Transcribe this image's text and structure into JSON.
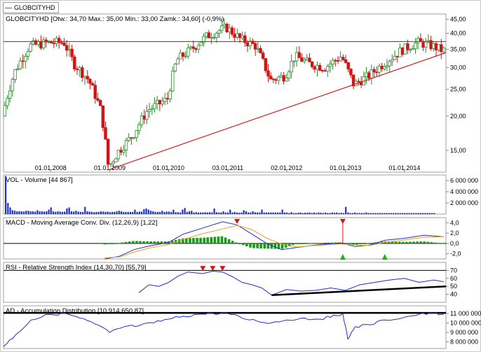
{
  "legend": {
    "symbol": "GLOBCITYHD"
  },
  "chart_data": [
    {
      "type": "candlestick",
      "title": "GLOBCITYHD [Otw.: 34,70  Max.: 35,00  Min.: 33,00  Zamk.: 34,60] (-0,9%)",
      "scale": "log",
      "ylim": [
        12.5,
        47
      ],
      "yticks": [
        45,
        40,
        35,
        30,
        25,
        20,
        15
      ],
      "ytick_labels": [
        "45,00",
        "40,00",
        "35,00",
        "30,00",
        "25,00",
        "20,00",
        "15,00"
      ],
      "x_tick_labels": [
        "01.01.2008",
        "01.01.2009",
        "01.01.2010",
        "03.01.2011",
        "02.01.2012",
        "01.01.2013",
        "01.01.2014"
      ],
      "x_tick_dates": [
        "2008-01-01",
        "2009-01-01",
        "2010-01-01",
        "2011-01-03",
        "2012-01-02",
        "2013-01-01",
        "2014-01-01"
      ],
      "x_range": [
        "2007-03-15",
        "2014-09-15"
      ],
      "resistance_line": 37.3,
      "trend_line": {
        "from": {
          "date": "2009-01-01",
          "value": 12.8
        },
        "to": {
          "date": "2014-09-15",
          "value": 34.0
        }
      },
      "key_prices": [
        {
          "date": "2007-03-15",
          "value": 20
        },
        {
          "date": "2007-06-01",
          "value": 29
        },
        {
          "date": "2007-09-01",
          "value": 36
        },
        {
          "date": "2008-01-01",
          "value": 37
        },
        {
          "date": "2008-04-01",
          "value": 37
        },
        {
          "date": "2008-06-01",
          "value": 31
        },
        {
          "date": "2008-09-01",
          "value": 27
        },
        {
          "date": "2008-11-15",
          "value": 21
        },
        {
          "date": "2009-01-01",
          "value": 13
        },
        {
          "date": "2009-03-01",
          "value": 14.8
        },
        {
          "date": "2009-06-01",
          "value": 17
        },
        {
          "date": "2009-09-01",
          "value": 21
        },
        {
          "date": "2010-01-01",
          "value": 23
        },
        {
          "date": "2010-03-01",
          "value": 32
        },
        {
          "date": "2010-06-01",
          "value": 35
        },
        {
          "date": "2010-09-01",
          "value": 39
        },
        {
          "date": "2011-01-01",
          "value": 42
        },
        {
          "date": "2011-04-01",
          "value": 38
        },
        {
          "date": "2011-07-01",
          "value": 36
        },
        {
          "date": "2011-10-01",
          "value": 27
        },
        {
          "date": "2012-01-01",
          "value": 28
        },
        {
          "date": "2012-03-01",
          "value": 33
        },
        {
          "date": "2012-06-01",
          "value": 31
        },
        {
          "date": "2012-09-01",
          "value": 30
        },
        {
          "date": "2012-12-15",
          "value": 33
        },
        {
          "date": "2013-03-01",
          "value": 26
        },
        {
          "date": "2013-06-01",
          "value": 28
        },
        {
          "date": "2013-09-01",
          "value": 31
        },
        {
          "date": "2014-01-01",
          "value": 35
        },
        {
          "date": "2014-04-01",
          "value": 37
        },
        {
          "date": "2014-07-01",
          "value": 36
        },
        {
          "date": "2014-09-01",
          "value": 34.6
        }
      ]
    },
    {
      "type": "bar",
      "title": "VOL - Volume [44 867]",
      "ylim": [
        0,
        7000000
      ],
      "yticks": [
        6000000,
        4000000,
        2000000
      ],
      "ytick_labels": [
        "6 000 000",
        "4 000 000",
        "2 000 000"
      ],
      "bars_per_year": 26,
      "values": [
        6800000,
        2000000,
        1200000,
        700000,
        600000,
        500000,
        500000,
        500000,
        450000,
        600000,
        600000,
        500000,
        500000,
        450000,
        700000,
        500000,
        500000,
        450000,
        500000,
        800000,
        1200000,
        500000,
        400000,
        500000,
        450000,
        400000,
        450000,
        1000000,
        1200000,
        500000,
        450000,
        600000,
        450000,
        400000,
        400000,
        1300000,
        500000,
        450000,
        400000,
        350000,
        400000,
        400000,
        500000,
        450000,
        400000,
        450000,
        350000,
        400000,
        400000,
        500000,
        600000,
        500000,
        400000,
        400000,
        400000,
        400000,
        400000,
        800000,
        400000,
        450000,
        450000,
        900000,
        1000000,
        800000,
        600000,
        500000,
        400000,
        400000,
        400000,
        600000,
        400000,
        450000,
        450000,
        400000,
        800000,
        350000,
        350000,
        300000,
        800000,
        1100000,
        400000,
        500000,
        600000,
        300000,
        350000,
        300000,
        300000,
        300000,
        350000,
        300000,
        350000,
        300000,
        1000000,
        350000,
        300000,
        300000,
        500000,
        300000,
        300000,
        800000,
        300000,
        400000,
        300000,
        250000,
        300000,
        700000,
        500000,
        300000,
        300000,
        500000,
        350000,
        300000,
        300000,
        800000,
        300000,
        300000,
        300000,
        300000,
        300000,
        300000,
        300000,
        300000,
        800000,
        300000,
        300000,
        200000,
        350000,
        200000,
        200000,
        250000,
        300000,
        200000,
        250000,
        250000,
        300000,
        200000,
        300000,
        200000,
        300000,
        250000,
        200000,
        300000,
        200000,
        200000,
        300000,
        250000,
        300000,
        200000,
        250000,
        200000,
        1300000,
        300000,
        200000,
        200000,
        300000,
        200000,
        200000,
        200000,
        200000,
        300000,
        200000,
        200000,
        200000,
        200000,
        200000,
        200000,
        200000,
        200000,
        200000,
        200000,
        200000,
        200000,
        200000,
        200000,
        200000,
        200000,
        200000,
        200000,
        200000,
        200000,
        200000,
        200000,
        200000,
        200000,
        200000,
        200000,
        200000,
        200000,
        200000,
        200000
      ]
    },
    {
      "type": "line",
      "title": "MACD - Moving Average Conv. Div. (12,26,9) [1,22]",
      "ylim": [
        -3,
        5
      ],
      "yticks": [
        4,
        2,
        0,
        -2
      ],
      "ytick_labels": [
        "4,0",
        "2,0",
        "0,0",
        "-2,0"
      ],
      "series": [
        {
          "name": "MACD",
          "color": "#1e2fc8",
          "points": [
            {
              "date": "2008-12-01",
              "value": -3
            },
            {
              "date": "2009-03-01",
              "value": -2.5
            },
            {
              "date": "2009-06-01",
              "value": -1.2
            },
            {
              "date": "2009-09-01",
              "value": -0.5
            },
            {
              "date": "2010-01-01",
              "value": 0.2
            },
            {
              "date": "2010-04-01",
              "value": 1.8
            },
            {
              "date": "2010-08-01",
              "value": 3
            },
            {
              "date": "2010-12-01",
              "value": 4.2
            },
            {
              "date": "2011-03-01",
              "value": 3.6
            },
            {
              "date": "2011-06-01",
              "value": 1.8
            },
            {
              "date": "2011-09-01",
              "value": 0
            },
            {
              "date": "2011-12-01",
              "value": -1.2
            },
            {
              "date": "2012-03-01",
              "value": -0.8
            },
            {
              "date": "2012-07-01",
              "value": -0.3
            },
            {
              "date": "2012-12-01",
              "value": 0.1
            },
            {
              "date": "2013-03-01",
              "value": -0.6
            },
            {
              "date": "2013-06-01",
              "value": -0.3
            },
            {
              "date": "2013-09-01",
              "value": 0.6
            },
            {
              "date": "2014-01-01",
              "value": 1.0
            },
            {
              "date": "2014-05-01",
              "value": 1.6
            },
            {
              "date": "2014-09-01",
              "value": 1.3
            }
          ]
        },
        {
          "name": "Signal",
          "color": "#e8a020",
          "points": [
            {
              "date": "2008-12-01",
              "value": -2.8
            },
            {
              "date": "2009-03-01",
              "value": -2.6
            },
            {
              "date": "2009-06-01",
              "value": -1.7
            },
            {
              "date": "2009-09-01",
              "value": -0.9
            },
            {
              "date": "2010-01-01",
              "value": -0.2
            },
            {
              "date": "2010-04-01",
              "value": 0.8
            },
            {
              "date": "2010-08-01",
              "value": 1.9
            },
            {
              "date": "2010-12-01",
              "value": 2.8
            },
            {
              "date": "2011-03-01",
              "value": 3.5
            },
            {
              "date": "2011-06-01",
              "value": 2.7
            },
            {
              "date": "2011-09-01",
              "value": 1.0
            },
            {
              "date": "2011-12-01",
              "value": -0.1
            },
            {
              "date": "2012-03-01",
              "value": -0.7
            },
            {
              "date": "2012-07-01",
              "value": -0.4
            },
            {
              "date": "2012-12-01",
              "value": -0.1
            },
            {
              "date": "2013-03-01",
              "value": -0.3
            },
            {
              "date": "2013-06-01",
              "value": -0.4
            },
            {
              "date": "2013-09-01",
              "value": 0.2
            },
            {
              "date": "2014-01-01",
              "value": 0.7
            },
            {
              "date": "2014-05-01",
              "value": 1.2
            },
            {
              "date": "2014-09-01",
              "value": 1.3
            }
          ]
        }
      ],
      "sell_signals": [
        {
          "date": "2011-03-01",
          "value": 4.2
        },
        {
          "date": "2012-12-15",
          "value": 4.2
        }
      ],
      "buy_signals": [
        {
          "date": "2012-12-15",
          "value": -2.6
        },
        {
          "date": "2013-09-01",
          "value": -2.6
        }
      ]
    },
    {
      "type": "line",
      "title": "RSI - Relative Strength Index (14,30,70) [55,79]",
      "ylim": [
        30,
        80
      ],
      "yticks": [
        70,
        60,
        50,
        40
      ],
      "ytick_labels": [
        "70",
        "60",
        "50",
        "40"
      ],
      "overbought_line": 70,
      "series": [
        {
          "name": "RSI",
          "color": "#1e2fc8",
          "points": [
            {
              "date": "2009-07-01",
              "value": 42
            },
            {
              "date": "2009-09-01",
              "value": 52
            },
            {
              "date": "2009-11-01",
              "value": 50
            },
            {
              "date": "2010-01-01",
              "value": 55
            },
            {
              "date": "2010-03-01",
              "value": 63
            },
            {
              "date": "2010-05-01",
              "value": 68
            },
            {
              "date": "2010-08-01",
              "value": 66
            },
            {
              "date": "2010-10-01",
              "value": 69
            },
            {
              "date": "2010-12-01",
              "value": 68
            },
            {
              "date": "2011-02-01",
              "value": 62
            },
            {
              "date": "2011-04-01",
              "value": 55
            },
            {
              "date": "2011-06-01",
              "value": 52
            },
            {
              "date": "2011-08-01",
              "value": 48
            },
            {
              "date": "2011-10-01",
              "value": 39
            },
            {
              "date": "2012-01-01",
              "value": 46
            },
            {
              "date": "2012-04-01",
              "value": 44
            },
            {
              "date": "2012-07-01",
              "value": 45
            },
            {
              "date": "2012-10-01",
              "value": 48
            },
            {
              "date": "2013-01-01",
              "value": 45
            },
            {
              "date": "2013-04-01",
              "value": 52
            },
            {
              "date": "2013-07-01",
              "value": 55
            },
            {
              "date": "2013-10-01",
              "value": 58
            },
            {
              "date": "2014-01-01",
              "value": 60
            },
            {
              "date": "2014-04-01",
              "value": 55
            },
            {
              "date": "2014-07-01",
              "value": 58
            },
            {
              "date": "2014-09-01",
              "value": 55.79
            }
          ]
        }
      ],
      "support_line": {
        "from": {
          "date": "2011-10-01",
          "value": 39
        },
        "to": {
          "date": "2014-09-15",
          "value": 50
        }
      },
      "sell_signals": [
        {
          "date": "2010-08-01",
          "value": 72
        },
        {
          "date": "2010-10-01",
          "value": 72
        },
        {
          "date": "2010-12-01",
          "value": 72
        }
      ]
    },
    {
      "type": "line",
      "title": "AD - Accumulation Distribution [10 914 650,87]",
      "ylim": [
        7300000,
        11800000
      ],
      "yticks": [
        11000000,
        10000000,
        9000000,
        8000000
      ],
      "ytick_labels": [
        "11 000 000",
        "10 000 000",
        "9 000 000",
        "8 000 000"
      ],
      "resistance_line": 11050000,
      "series": [
        {
          "name": "AD",
          "color": "#1e2fc8",
          "points": [
            {
              "date": "2007-03-15",
              "value": 7500000
            },
            {
              "date": "2007-06-01",
              "value": 8800000
            },
            {
              "date": "2007-09-01",
              "value": 10300000
            },
            {
              "date": "2008-01-01",
              "value": 10900000
            },
            {
              "date": "2008-04-01",
              "value": 11000000
            },
            {
              "date": "2008-07-01",
              "value": 10500000
            },
            {
              "date": "2008-10-01",
              "value": 9900000
            },
            {
              "date": "2009-01-01",
              "value": 9000000
            },
            {
              "date": "2009-04-01",
              "value": 9600000
            },
            {
              "date": "2009-07-01",
              "value": 9700000
            },
            {
              "date": "2009-10-01",
              "value": 10000000
            },
            {
              "date": "2010-01-01",
              "value": 10400000
            },
            {
              "date": "2010-04-01",
              "value": 10700000
            },
            {
              "date": "2010-07-01",
              "value": 10900000
            },
            {
              "date": "2010-10-01",
              "value": 11000000
            },
            {
              "date": "2011-01-01",
              "value": 11000000
            },
            {
              "date": "2011-04-01",
              "value": 10500000
            },
            {
              "date": "2011-07-01",
              "value": 10200000
            },
            {
              "date": "2011-10-01",
              "value": 10000000
            },
            {
              "date": "2012-01-01",
              "value": 10300000
            },
            {
              "date": "2012-04-01",
              "value": 10500000
            },
            {
              "date": "2012-07-01",
              "value": 10400000
            },
            {
              "date": "2012-10-01",
              "value": 10600000
            },
            {
              "date": "2012-12-15",
              "value": 11000000
            },
            {
              "date": "2013-01-15",
              "value": 8300000
            },
            {
              "date": "2013-03-01",
              "value": 9600000
            },
            {
              "date": "2013-06-01",
              "value": 9800000
            },
            {
              "date": "2013-09-01",
              "value": 10300000
            },
            {
              "date": "2014-01-01",
              "value": 10600000
            },
            {
              "date": "2014-04-01",
              "value": 10900000
            },
            {
              "date": "2014-07-01",
              "value": 11000000
            },
            {
              "date": "2014-09-01",
              "value": 10914650
            }
          ]
        }
      ]
    }
  ]
}
